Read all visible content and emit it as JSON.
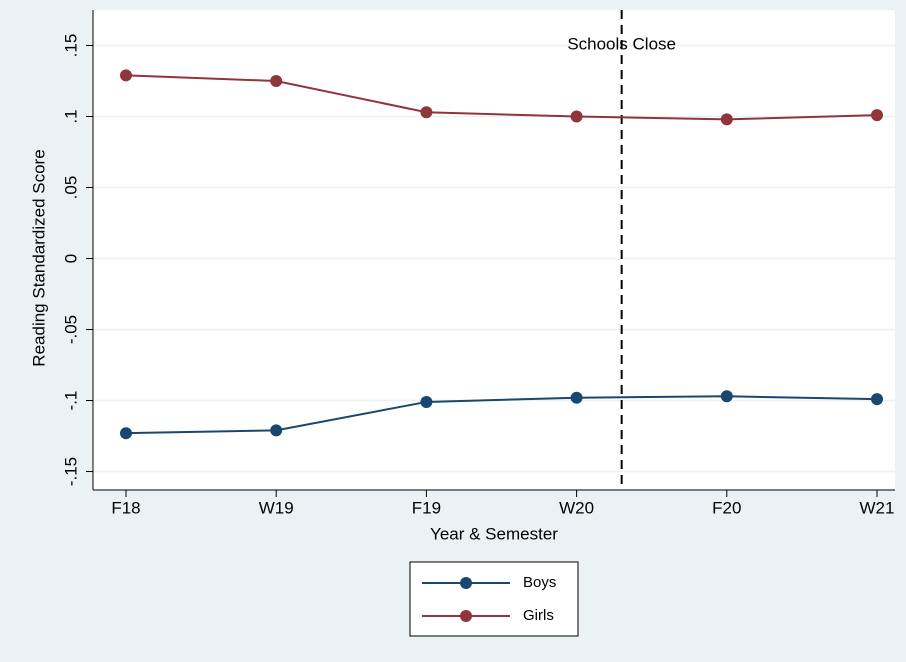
{
  "chart_data": {
    "type": "line",
    "y_label": "Reading Standardized Score",
    "x_label": "Year & Semester",
    "categories": [
      "F18",
      "W19",
      "F19",
      "W20",
      "F20",
      "W21"
    ],
    "series": [
      {
        "name": "Boys",
        "color": "#1a476f",
        "values": [
          -0.123,
          -0.121,
          -0.101,
          -0.098,
          -0.097,
          -0.099
        ]
      },
      {
        "name": "Girls",
        "color": "#90353b",
        "values": [
          0.129,
          0.125,
          0.103,
          0.1,
          0.098,
          0.101
        ]
      }
    ],
    "ylim": [
      -0.163,
      0.175
    ],
    "yticks": [
      {
        "value": 0.15,
        "label": ".15"
      },
      {
        "value": 0.1,
        "label": ".1"
      },
      {
        "value": 0.05,
        "label": ".05"
      },
      0,
      {
        "value": -0.05,
        "label": "-.05"
      },
      {
        "value": -0.1,
        "label": "-.1"
      },
      {
        "value": -0.15,
        "label": "-.15"
      }
    ],
    "vline": {
      "x": 3.3,
      "label": "Schools Close"
    },
    "grid": true
  }
}
